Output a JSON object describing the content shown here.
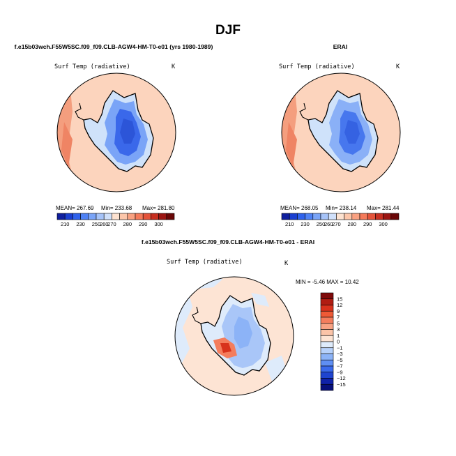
{
  "figure": {
    "title": "DJF",
    "colors": {
      "outline": "#000000",
      "background": "#ffffff"
    }
  },
  "chart_data": [
    {
      "type": "heatmap",
      "subtitle": "f.e15b03wch.F55W5SC.f09_f09.CLB-AGW4-HM-T0-e01 (yrs 1980-1989)",
      "variable": "Surf Temp (radiative)",
      "units": "K",
      "projection": "south-polar-stereographic",
      "stats": {
        "mean": "MEAN= 267.69",
        "min": "Min= 233.68",
        "max": "Max= 281.80"
      },
      "colorbar": {
        "orientation": "horizontal",
        "ticks": [
          "210",
          "230",
          "250",
          "260",
          "270",
          "280",
          "290",
          "300"
        ],
        "colors": [
          "#0f1f9e",
          "#1a3fd1",
          "#2f62ec",
          "#4f82f5",
          "#7aa4f7",
          "#a6c3f8",
          "#d0e0fa",
          "#fde2d0",
          "#fcc6aa",
          "#f9a181",
          "#f47a5a",
          "#e4533a",
          "#c72f20",
          "#9c1512",
          "#6a0707"
        ]
      }
    },
    {
      "type": "heatmap",
      "subtitle": "ERAI",
      "variable": "Surf Temp (radiative)",
      "units": "K",
      "projection": "south-polar-stereographic",
      "stats": {
        "mean": "MEAN= 268.05",
        "min": "Min= 238.14",
        "max": "Max= 281.44"
      },
      "colorbar": {
        "orientation": "horizontal",
        "ticks": [
          "210",
          "230",
          "250",
          "260",
          "270",
          "280",
          "290",
          "300"
        ],
        "colors": [
          "#0f1f9e",
          "#1a3fd1",
          "#2f62ec",
          "#4f82f5",
          "#7aa4f7",
          "#a6c3f8",
          "#d0e0fa",
          "#fde2d0",
          "#fcc6aa",
          "#f9a181",
          "#f47a5a",
          "#e4533a",
          "#c72f20",
          "#9c1512",
          "#6a0707"
        ]
      }
    },
    {
      "type": "heatmap",
      "subtitle": "f.e15b03wch.F55W5SC.f09_f09.CLB-AGW4-HM-T0-e01 - ERAI",
      "variable": "Surf Temp (radiative)",
      "units": "K",
      "projection": "south-polar-stereographic",
      "stats": {
        "minmax": "MIN = -5.46 MAX = 10.42"
      },
      "colorbar": {
        "orientation": "vertical",
        "ticks": [
          "15",
          "12",
          "9",
          "7",
          "5",
          "3",
          "1",
          "0",
          "−1",
          "−3",
          "−5",
          "−7",
          "−9",
          "−12",
          "−15"
        ],
        "colors": [
          "#7e0a0a",
          "#b01d12",
          "#d8321c",
          "#ee5a36",
          "#f47d5d",
          "#f8a283",
          "#fbc4a8",
          "#fde4d4",
          "#deebfb",
          "#b7d1fa",
          "#8cb3f7",
          "#5f8ff4",
          "#3a6aec",
          "#1f44cf",
          "#1022a8",
          "#08107a"
        ]
      }
    }
  ]
}
